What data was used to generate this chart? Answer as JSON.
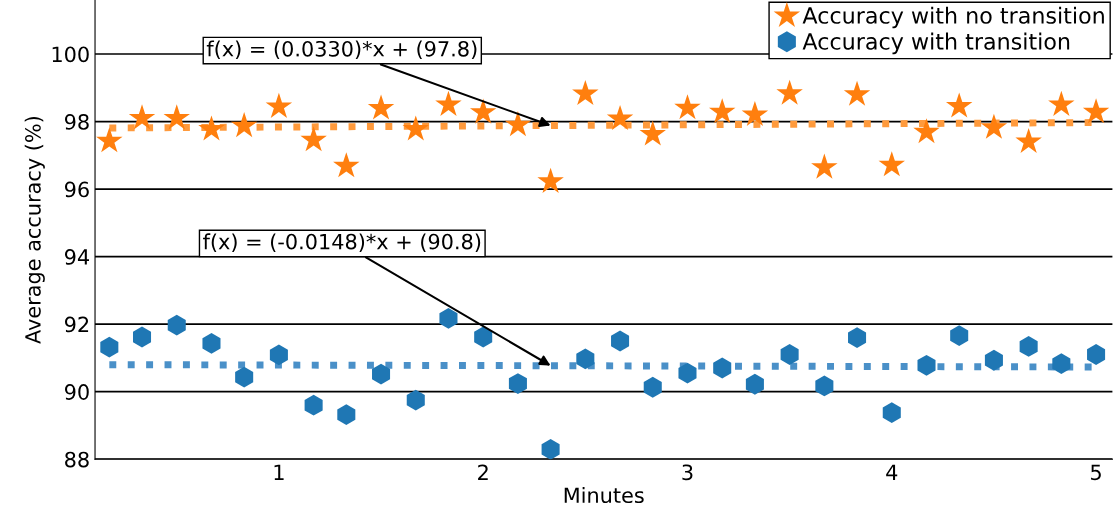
{
  "chart_data": {
    "type": "scatter",
    "xlabel": "Minutes",
    "ylabel": "Average accuracy (%)",
    "xlim": [
      0.1,
      5.08
    ],
    "xticks": [
      1,
      2,
      3,
      4,
      5
    ],
    "ylim": [
      88,
      101.6
    ],
    "yticks": [
      88,
      90,
      92,
      94,
      96,
      98,
      100
    ],
    "grid": "y",
    "legend": "top right",
    "series": [
      {
        "name": "Accuracy with no transition",
        "marker": "star",
        "color": "#ff7f0e",
        "x": [
          0.17,
          0.33,
          0.5,
          0.67,
          0.83,
          1,
          1.17,
          1.33,
          1.5,
          1.67,
          1.83,
          2,
          2.17,
          2.33,
          2.5,
          2.67,
          2.83,
          3,
          3.17,
          3.33,
          3.5,
          3.67,
          3.83,
          4,
          4.17,
          4.33,
          4.5,
          4.67,
          4.83,
          5
        ],
        "values": [
          97.42,
          98.1,
          98.1,
          97.77,
          97.87,
          98.44,
          97.45,
          96.68,
          98.39,
          97.77,
          98.5,
          98.27,
          97.9,
          96.22,
          98.82,
          98.08,
          97.62,
          98.4,
          98.28,
          98.2,
          98.83,
          96.64,
          98.8,
          96.71,
          97.69,
          98.45,
          97.82,
          97.4,
          98.5,
          98.28
        ]
      },
      {
        "name": "Accuracy with transition",
        "color": "#1f77b4",
        "x": [
          0.17,
          0.33,
          0.5,
          0.67,
          0.83,
          1,
          1.17,
          1.33,
          1.5,
          1.67,
          1.83,
          2,
          2.17,
          2.33,
          2.5,
          2.67,
          2.83,
          3,
          3.17,
          3.33,
          3.5,
          3.67,
          3.83,
          4,
          4.17,
          4.33,
          4.5,
          4.67,
          4.83,
          5
        ],
        "values": [
          91.32,
          91.62,
          91.97,
          91.43,
          90.43,
          91.09,
          89.6,
          89.32,
          90.52,
          89.75,
          92.17,
          91.62,
          90.24,
          88.29,
          90.97,
          91.5,
          90.13,
          90.55,
          90.7,
          90.22,
          91.1,
          90.17,
          91.6,
          89.38,
          90.78,
          91.66,
          90.93,
          91.34,
          90.83,
          91.1
        ]
      },
      {
        "type": "line",
        "line_style": "dotted",
        "color": "#ff9a3c",
        "x": [
          0.17,
          5
        ],
        "values": [
          97.81,
          97.97
        ]
      },
      {
        "type": "line",
        "line_style": "dotted",
        "color": "#4a90c8",
        "x": [
          0.17,
          5
        ],
        "values": [
          90.8,
          90.73
        ]
      }
    ],
    "annotations": [
      {
        "text": "f(x) = (0.0330)*x + (97.8)",
        "x": 2.33,
        "y": 97.88
      },
      {
        "text": "f(x) = (-0.0148)*x + (90.8)",
        "x": 2.33,
        "y": 90.77
      }
    ]
  }
}
